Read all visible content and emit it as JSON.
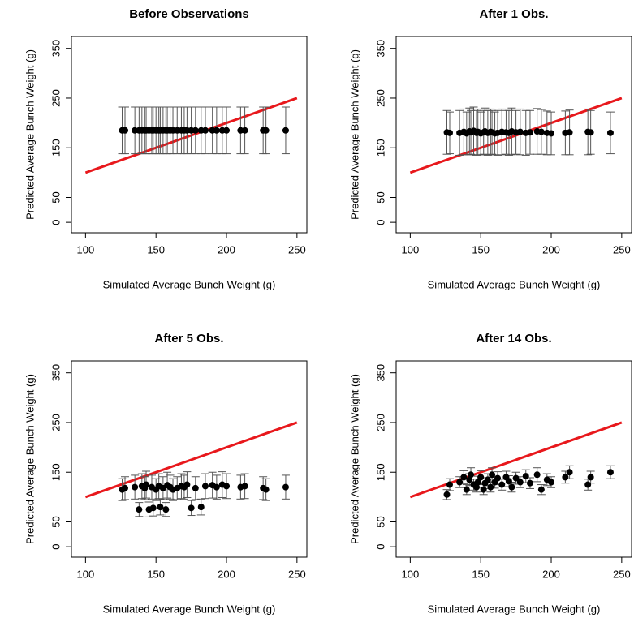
{
  "chart_data": [
    {
      "type": "scatter",
      "title": "Before Observations",
      "xlabel": "Simulated Average Bunch Weight (g)",
      "ylabel": "Predicted Average Bunch Weight (g)",
      "xlim": [
        90,
        257
      ],
      "ylim": [
        -21,
        374
      ],
      "xticks": [
        100,
        150,
        200,
        250
      ],
      "yticks": [
        0,
        50,
        150,
        250,
        350
      ],
      "reference_line": {
        "x": [
          100,
          250
        ],
        "y": [
          100,
          250
        ],
        "color": "#e8181c"
      },
      "series": [
        {
          "color": "#000000",
          "x": [
            126,
            128,
            135,
            138,
            140,
            142,
            143,
            145,
            147,
            148,
            150,
            152,
            153,
            155,
            157,
            158,
            160,
            162,
            165,
            168,
            170,
            172,
            175,
            178,
            182,
            185,
            190,
            193,
            197,
            200,
            210,
            213,
            226,
            228,
            242
          ],
          "values": [
            185,
            185,
            185,
            185,
            185,
            185,
            185,
            185,
            185,
            185,
            185,
            185,
            185,
            185,
            185,
            185,
            185,
            185,
            185,
            185,
            185,
            185,
            185,
            185,
            185,
            185,
            185,
            185,
            185,
            185,
            185,
            185,
            185,
            185,
            185
          ],
          "errors": [
            47,
            47,
            47,
            47,
            47,
            47,
            47,
            47,
            47,
            47,
            47,
            47,
            47,
            47,
            47,
            47,
            47,
            47,
            47,
            47,
            47,
            47,
            47,
            47,
            47,
            47,
            47,
            47,
            47,
            47,
            47,
            47,
            47,
            47,
            47
          ]
        }
      ]
    },
    {
      "type": "scatter",
      "title": "After 1 Obs.",
      "xlabel": "Simulated Average Bunch Weight (g)",
      "ylabel": "Predicted Average Bunch Weight (g)",
      "xlim": [
        90,
        257
      ],
      "ylim": [
        -21,
        374
      ],
      "xticks": [
        100,
        150,
        200,
        250
      ],
      "yticks": [
        0,
        50,
        150,
        250,
        350
      ],
      "reference_line": {
        "x": [
          100,
          250
        ],
        "y": [
          100,
          250
        ],
        "color": "#e8181c"
      },
      "series": [
        {
          "color": "#000000",
          "x": [
            126,
            128,
            135,
            138,
            140,
            142,
            143,
            145,
            147,
            148,
            150,
            152,
            153,
            155,
            157,
            158,
            160,
            162,
            165,
            168,
            170,
            172,
            175,
            178,
            182,
            185,
            190,
            193,
            197,
            200,
            210,
            213,
            226,
            228,
            242
          ],
          "values": [
            181,
            180,
            180,
            182,
            179,
            183,
            181,
            184,
            180,
            182,
            179,
            181,
            183,
            180,
            182,
            181,
            179,
            180,
            182,
            181,
            180,
            183,
            181,
            182,
            180,
            181,
            183,
            182,
            180,
            179,
            180,
            181,
            182,
            181,
            180
          ],
          "errors": [
            44,
            42,
            45,
            46,
            43,
            47,
            44,
            48,
            45,
            46,
            43,
            44,
            47,
            45,
            46,
            44,
            43,
            45,
            46,
            44,
            45,
            47,
            44,
            46,
            45,
            44,
            46,
            45,
            44,
            43,
            44,
            45,
            46,
            44,
            42
          ]
        }
      ]
    },
    {
      "type": "scatter",
      "title": "After 5 Obs.",
      "xlabel": "Simulated Average Bunch Weight (g)",
      "ylabel": "Predicted Average Bunch Weight (g)",
      "xlim": [
        90,
        257
      ],
      "ylim": [
        -21,
        374
      ],
      "xticks": [
        100,
        150,
        200,
        250
      ],
      "yticks": [
        0,
        50,
        150,
        250,
        350
      ],
      "reference_line": {
        "x": [
          100,
          250
        ],
        "y": [
          100,
          250
        ],
        "color": "#e8181c"
      },
      "series": [
        {
          "color": "#000000",
          "x": [
            126,
            128,
            135,
            138,
            140,
            142,
            143,
            145,
            147,
            148,
            150,
            152,
            153,
            155,
            157,
            158,
            160,
            162,
            165,
            168,
            170,
            172,
            175,
            178,
            182,
            185,
            190,
            193,
            197,
            200,
            210,
            213,
            226,
            228,
            242
          ],
          "values": [
            115,
            118,
            120,
            75,
            122,
            118,
            125,
            75,
            120,
            78,
            115,
            122,
            80,
            118,
            75,
            124,
            120,
            115,
            118,
            122,
            120,
            125,
            78,
            118,
            80,
            122,
            124,
            120,
            125,
            122,
            120,
            122,
            118,
            115,
            120
          ],
          "errors": [
            22,
            23,
            24,
            14,
            25,
            23,
            27,
            15,
            24,
            16,
            22,
            25,
            16,
            23,
            14,
            26,
            24,
            22,
            23,
            25,
            24,
            26,
            15,
            23,
            16,
            25,
            26,
            24,
            26,
            25,
            24,
            25,
            23,
            22,
            24
          ]
        }
      ]
    },
    {
      "type": "scatter",
      "title": "After 14 Obs.",
      "xlabel": "Simulated Average Bunch Weight (g)",
      "ylabel": "Predicted Average Bunch Weight (g)",
      "xlim": [
        90,
        257
      ],
      "ylim": [
        -21,
        374
      ],
      "xticks": [
        100,
        150,
        200,
        250
      ],
      "yticks": [
        0,
        50,
        150,
        250,
        350
      ],
      "reference_line": {
        "x": [
          100,
          250
        ],
        "y": [
          100,
          250
        ],
        "color": "#e8181c"
      },
      "series": [
        {
          "color": "#000000",
          "x": [
            126,
            128,
            135,
            138,
            140,
            142,
            143,
            145,
            147,
            148,
            150,
            152,
            153,
            155,
            157,
            158,
            160,
            162,
            165,
            168,
            170,
            172,
            175,
            178,
            182,
            185,
            190,
            193,
            197,
            200,
            210,
            213,
            226,
            228,
            242
          ],
          "values": [
            105,
            125,
            130,
            140,
            115,
            135,
            145,
            125,
            120,
            130,
            140,
            115,
            128,
            135,
            120,
            145,
            130,
            138,
            125,
            140,
            132,
            120,
            138,
            130,
            142,
            128,
            145,
            115,
            135,
            130,
            140,
            150,
            125,
            140,
            150
          ],
          "errors": [
            10,
            12,
            11,
            13,
            10,
            12,
            14,
            11,
            10,
            12,
            13,
            10,
            11,
            12,
            10,
            14,
            12,
            13,
            11,
            12,
            11,
            10,
            12,
            11,
            13,
            11,
            14,
            10,
            12,
            11,
            12,
            13,
            11,
            12,
            13
          ]
        }
      ]
    }
  ]
}
